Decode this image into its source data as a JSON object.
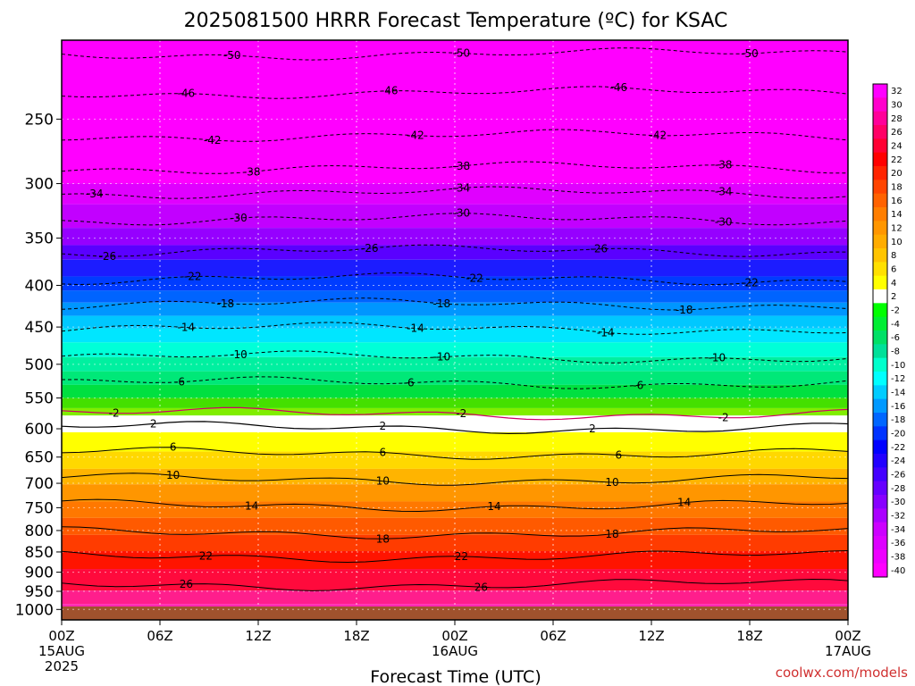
{
  "chart_data": {
    "type": "heatmap",
    "title": "2025081500 HRRR Forecast Temperature (ºC) for KSAC",
    "xlabel": "Forecast Time (UTC)",
    "ylabel": "",
    "credit": "coolwx.com/models",
    "y_scale": "log",
    "y_inverted": true,
    "x_ticks": [
      {
        "label": "00Z",
        "sub": [
          "15AUG",
          "2025"
        ]
      },
      {
        "label": "06Z",
        "sub": []
      },
      {
        "label": "12Z",
        "sub": []
      },
      {
        "label": "18Z",
        "sub": []
      },
      {
        "label": "00Z",
        "sub": [
          "16AUG"
        ]
      },
      {
        "label": "06Z",
        "sub": []
      },
      {
        "label": "12Z",
        "sub": []
      },
      {
        "label": "18Z",
        "sub": []
      },
      {
        "label": "00Z",
        "sub": [
          "17AUG"
        ]
      }
    ],
    "y_ticks": [
      250,
      300,
      350,
      400,
      450,
      500,
      550,
      600,
      650,
      700,
      750,
      800,
      850,
      900,
      950,
      1000
    ],
    "ylim": [
      1030,
      200
    ],
    "grid": true,
    "colorbar_labels": [
      "32",
      "30",
      "28",
      "26",
      "24",
      "22",
      "20",
      "18",
      "16",
      "14",
      "12",
      "10",
      "8",
      "6",
      "4",
      "2",
      "-2",
      "-4",
      "-6",
      "-8",
      "-10",
      "-12",
      "-14",
      "-16",
      "-18",
      "-20",
      "-22",
      "-24",
      "-26",
      "-28",
      "-30",
      "-32",
      "-34",
      "-36",
      "-38",
      "-40"
    ],
    "contours": [
      {
        "value": "-50",
        "pressure": 208,
        "labels": [
          2.6,
          6.1,
          10.5
        ]
      },
      {
        "value": "-46",
        "pressure": 232,
        "labels": [
          1.9,
          5.0,
          8.5
        ]
      },
      {
        "value": "-42",
        "pressure": 262,
        "labels": [
          2.3,
          5.4,
          9.1
        ]
      },
      {
        "value": "-38",
        "pressure": 287,
        "labels": [
          2.9,
          6.1,
          10.1
        ]
      },
      {
        "value": "-34",
        "pressure": 308,
        "labels": [
          0.5,
          6.1,
          10.1
        ]
      },
      {
        "value": "-30",
        "pressure": 332,
        "labels": [
          2.7,
          6.1,
          10.1
        ]
      },
      {
        "value": "-26",
        "pressure": 363,
        "labels": [
          0.7,
          4.7,
          8.2
        ]
      },
      {
        "value": "-22",
        "pressure": 393,
        "labels": [
          2.0,
          6.3,
          10.5
        ]
      },
      {
        "value": "-18",
        "pressure": 422,
        "labels": [
          2.5,
          5.8,
          9.5
        ]
      },
      {
        "value": "-14",
        "pressure": 452,
        "labels": [
          1.9,
          5.4,
          8.3
        ]
      },
      {
        "value": "-10",
        "pressure": 490,
        "labels": [
          2.7,
          5.8,
          10.0
        ]
      },
      {
        "value": "-6",
        "pressure": 527,
        "labels": [
          1.8,
          5.3,
          8.8
        ]
      },
      {
        "value": "-2",
        "pressure": 575,
        "labels": [
          0.8,
          6.1,
          10.1
        ]
      },
      {
        "value": "2",
        "pressure": 598,
        "labels": [
          1.4,
          4.9,
          8.1
        ]
      },
      {
        "value": "6",
        "pressure": 643,
        "labels": [
          1.7,
          4.9,
          8.5
        ]
      },
      {
        "value": "10",
        "pressure": 692,
        "labels": [
          1.7,
          4.9,
          8.4
        ]
      },
      {
        "value": "14",
        "pressure": 745,
        "labels": [
          2.9,
          6.6,
          9.5
        ]
      },
      {
        "value": "18",
        "pressure": 805,
        "labels": [
          4.9,
          8.4
        ]
      },
      {
        "value": "22",
        "pressure": 860,
        "labels": [
          2.2,
          6.1
        ]
      },
      {
        "value": "26",
        "pressure": 932,
        "labels": [
          1.9,
          6.4
        ]
      }
    ]
  }
}
